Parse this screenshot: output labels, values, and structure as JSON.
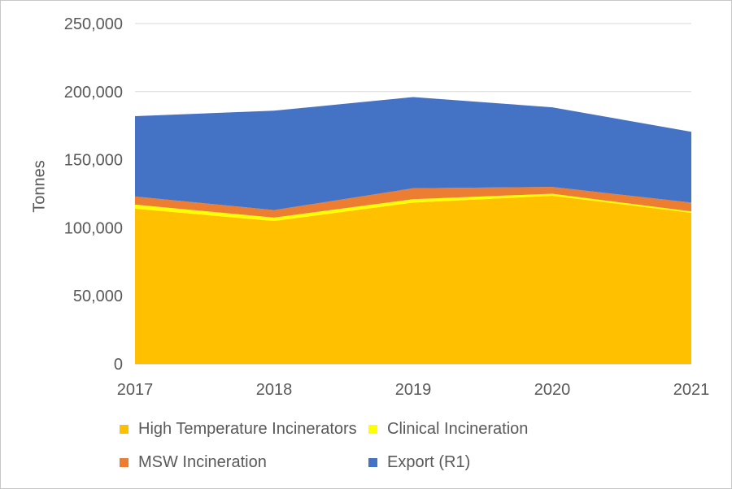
{
  "chart_data": {
    "type": "area",
    "stacked": true,
    "title": "",
    "xlabel": "",
    "ylabel": "Tonnes",
    "categories": [
      "2017",
      "2018",
      "2019",
      "2020",
      "2021"
    ],
    "series": [
      {
        "name": "High Temperature Incinerators",
        "color": "#FFC000",
        "values": [
          114000,
          105000,
          118500,
          123500,
          111000
        ]
      },
      {
        "name": "Clinical Incineration",
        "color": "#FFFF00",
        "values": [
          3000,
          2500,
          2500,
          1500,
          1000
        ]
      },
      {
        "name": "MSW Incineration",
        "color": "#ED7D31",
        "values": [
          6000,
          5500,
          8000,
          5000,
          6500
        ]
      },
      {
        "name": "Export (R1)",
        "color": "#4472C4",
        "values": [
          59000,
          73000,
          67000,
          58500,
          52000
        ]
      }
    ],
    "stack_totals": [
      182000,
      186000,
      196000,
      188500,
      170500
    ],
    "ylim": [
      0,
      250000
    ],
    "y_tick_step": 50000,
    "y_tick_labels": [
      "0",
      "50,000",
      "100,000",
      "150,000",
      "200,000",
      "250,000"
    ],
    "grid": true,
    "legend_position": "bottom",
    "colors": {
      "text": "#595959",
      "gridline": "#D9D9D9",
      "axis": "#BFBFBF",
      "background": "#FFFFFF"
    }
  }
}
